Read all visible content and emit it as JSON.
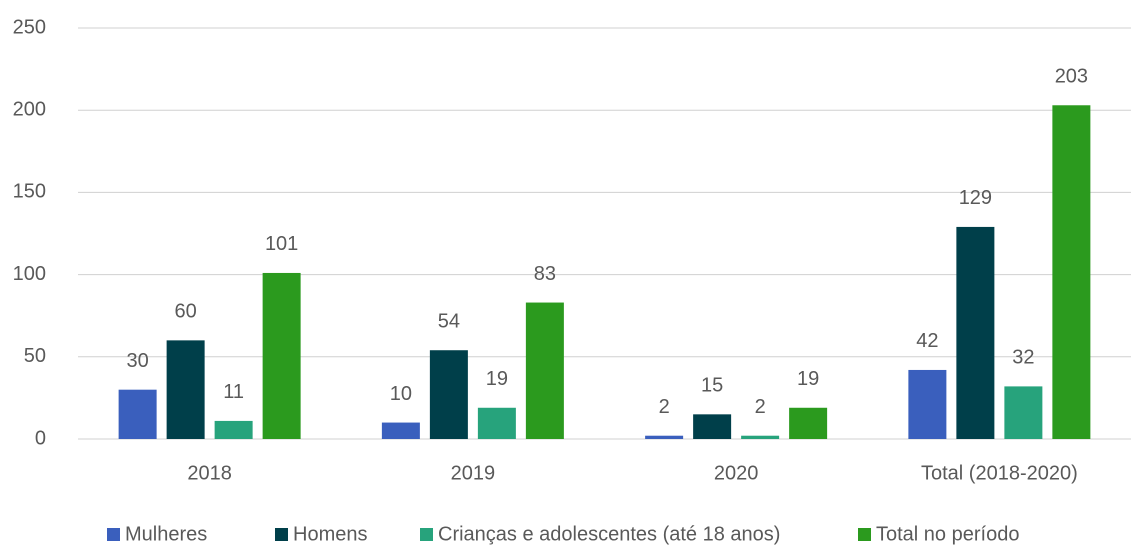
{
  "chart_data": {
    "type": "bar",
    "categories": [
      "2018",
      "2019",
      "2020",
      "Total (2018-2020)"
    ],
    "series": [
      {
        "name": "Mulheres",
        "color": "#3a5fbd",
        "values": [
          30,
          10,
          2,
          42
        ]
      },
      {
        "name": "Homens",
        "color": "#003f4a",
        "values": [
          60,
          54,
          15,
          129
        ]
      },
      {
        "name": "Crianças e adolescentes (até 18 anos)",
        "color": "#27a37c",
        "values": [
          11,
          19,
          2,
          32
        ]
      },
      {
        "name": "Total no período",
        "color": "#2b9a1e",
        "values": [
          101,
          83,
          19,
          203
        ]
      }
    ],
    "ylim": [
      0,
      250
    ],
    "yticks": [
      0,
      50,
      100,
      150,
      200,
      250
    ],
    "grid": true,
    "legend": "bottom"
  }
}
